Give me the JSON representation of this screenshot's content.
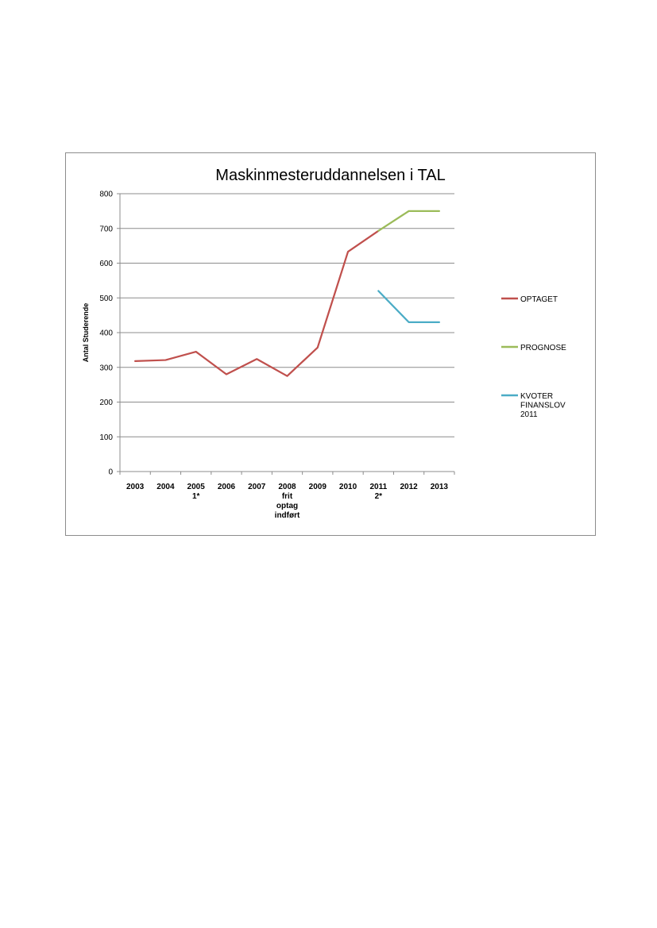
{
  "chart_data": {
    "type": "line",
    "title": "Maskinmesteruddannelsen i TAL",
    "xlabel": "",
    "ylabel": "Antal  Studerende",
    "ylim": [
      0,
      800
    ],
    "yticks": [
      "0",
      "100",
      "200",
      "300",
      "400",
      "500",
      "600",
      "700",
      "800"
    ],
    "ytick_values": [
      0,
      100,
      200,
      300,
      400,
      500,
      600,
      700,
      800
    ],
    "grid": true,
    "legend_position": "right",
    "categories": [
      [
        "2003"
      ],
      [
        "2004"
      ],
      [
        "2005",
        "1*"
      ],
      [
        "2006"
      ],
      [
        "2007"
      ],
      [
        "2008",
        "frit",
        "optag",
        "indført"
      ],
      [
        "2009"
      ],
      [
        "2010"
      ],
      [
        "2011",
        "2*"
      ],
      [
        "2012"
      ],
      [
        "2013"
      ]
    ],
    "series": [
      {
        "name": "OPTAGET",
        "legend_lines": [
          "OPTAGET"
        ],
        "color": "#c0504d",
        "values": [
          318,
          321,
          345,
          280,
          324,
          275,
          357,
          633,
          693,
          null,
          null
        ]
      },
      {
        "name": "PROGNOSE",
        "legend_lines": [
          "PROGNOSE"
        ],
        "color": "#9bbb59",
        "values": [
          null,
          null,
          null,
          null,
          null,
          null,
          null,
          null,
          693,
          750,
          750
        ]
      },
      {
        "name": "KVOTER FINANSLOV 2011",
        "legend_lines": [
          "KVOTER",
          "FINANSLOV",
          "2011"
        ],
        "color": "#4bacc6",
        "values": [
          null,
          null,
          null,
          null,
          null,
          null,
          null,
          null,
          520,
          430,
          430
        ]
      }
    ]
  }
}
